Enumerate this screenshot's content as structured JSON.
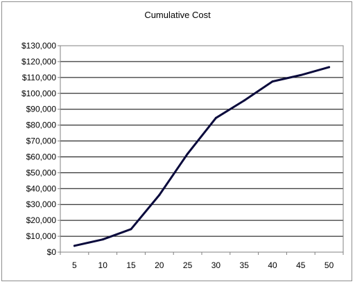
{
  "chart_data": {
    "type": "line",
    "title": "Cumulative Cost",
    "xlabel": "",
    "ylabel": "",
    "x": [
      5,
      10,
      15,
      20,
      25,
      30,
      35,
      40,
      45,
      50
    ],
    "x_tick_labels": [
      "5",
      "10",
      "15",
      "20",
      "25",
      "30",
      "35",
      "40",
      "45",
      "50"
    ],
    "y_tick_values": [
      0,
      10000,
      20000,
      30000,
      40000,
      50000,
      60000,
      70000,
      80000,
      90000,
      100000,
      110000,
      120000,
      130000
    ],
    "y_tick_labels": [
      "$0",
      "$10,000",
      "$20,000",
      "$30,000",
      "$40,000",
      "$50,000",
      "$60,000",
      "$70,000",
      "$80,000",
      "$90,000",
      "$100,000",
      "$110,000",
      "$120,000",
      "$130,000"
    ],
    "series": [
      {
        "values": [
          4000,
          8000,
          14500,
          36000,
          62000,
          84500,
          95500,
          107500,
          111500,
          116500
        ]
      }
    ],
    "ylim": [
      0,
      130000
    ],
    "grid": "horizontal",
    "legend": "none",
    "line_color": "#0a0a3c",
    "gridline_color": "#000000"
  }
}
